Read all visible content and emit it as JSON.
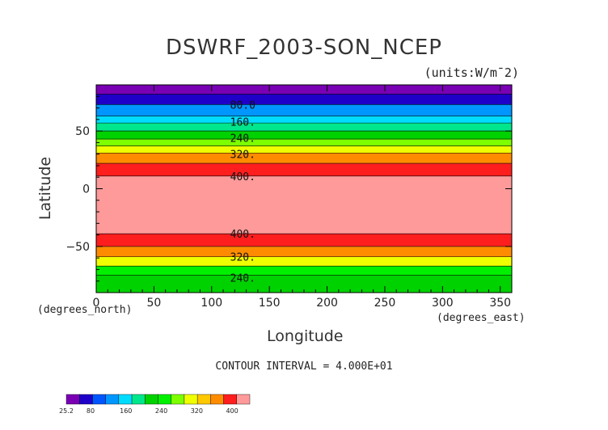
{
  "chart_data": {
    "type": "heatmap",
    "title": "DSWRF_2003-SON_NCEP",
    "units_label": "(units:W/m¯2)",
    "xlabel": "Longitude",
    "ylabel": "Latitude",
    "x_units": "(degrees_east)",
    "y_units": "(degrees_north)",
    "xlim": [
      0,
      360
    ],
    "ylim": [
      -90,
      90
    ],
    "x_ticks": [
      0,
      50,
      100,
      150,
      200,
      250,
      300,
      350
    ],
    "y_ticks": [
      -50,
      0,
      50
    ],
    "y_tick_labels": [
      "−50",
      "0",
      "50"
    ],
    "contour_interval_text": "CONTOUR INTERVAL = 4.000E+01",
    "levels": [
      25.2,
      40,
      80,
      120,
      160,
      200,
      240,
      280,
      320,
      360,
      400
    ],
    "colors": [
      "#7a00b4",
      "#1e00c8",
      "#0055ff",
      "#0096ff",
      "#00dcff",
      "#00e68c",
      "#00d200",
      "#00f000",
      "#7dff00",
      "#f0ff00",
      "#ffc800",
      "#ff8c00",
      "#ff1e1e",
      "#ff9a9a"
    ],
    "bands": [
      {
        "lat_from": 82,
        "lat_to": 90,
        "color_index": 0
      },
      {
        "lat_from": 73,
        "lat_to": 82,
        "color_index": 1
      },
      {
        "lat_from": 63,
        "lat_to": 73,
        "color_index": 3
      },
      {
        "lat_from": 57,
        "lat_to": 63,
        "color_index": 4
      },
      {
        "lat_from": 50,
        "lat_to": 57,
        "color_index": 5
      },
      {
        "lat_from": 43,
        "lat_to": 50,
        "color_index": 6
      },
      {
        "lat_from": 37,
        "lat_to": 43,
        "color_index": 8
      },
      {
        "lat_from": 31,
        "lat_to": 37,
        "color_index": 9
      },
      {
        "lat_from": 22,
        "lat_to": 31,
        "color_index": 11
      },
      {
        "lat_from": 11,
        "lat_to": 22,
        "color_index": 12
      },
      {
        "lat_from": -39,
        "lat_to": 11,
        "color_index": 13
      },
      {
        "lat_from": -50,
        "lat_to": -39,
        "color_index": 12
      },
      {
        "lat_from": -59,
        "lat_to": -50,
        "color_index": 11
      },
      {
        "lat_from": -67,
        "lat_to": -59,
        "color_index": 9
      },
      {
        "lat_from": -75,
        "lat_to": -67,
        "color_index": 7
      },
      {
        "lat_from": -90,
        "lat_to": -75,
        "color_index": 6
      }
    ],
    "contour_labels": [
      {
        "text": "80.0",
        "lat": 73
      },
      {
        "text": "160.",
        "lat": 58
      },
      {
        "text": "240.",
        "lat": 44
      },
      {
        "text": "320.",
        "lat": 30
      },
      {
        "text": "400.",
        "lat": 11
      },
      {
        "text": "400.",
        "lat": -39
      },
      {
        "text": "320.",
        "lat": -59
      },
      {
        "text": "240.",
        "lat": -77
      }
    ],
    "contour_label_lon": 127,
    "colorbar_labels": [
      {
        "text": "25.2",
        "level": 25.2
      },
      {
        "text": "80",
        "level": 80
      },
      {
        "text": "160",
        "level": 160
      },
      {
        "text": "240",
        "level": 240
      },
      {
        "text": "320",
        "level": 320
      },
      {
        "text": "400",
        "level": 400
      }
    ],
    "colorbar_range": [
      25.2,
      440
    ]
  }
}
